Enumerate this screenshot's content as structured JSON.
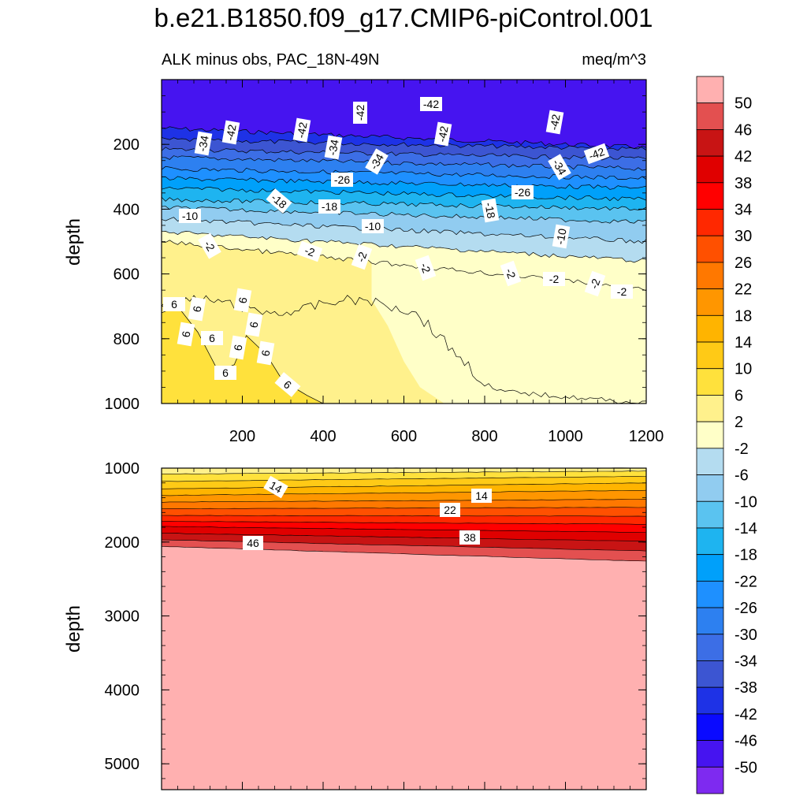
{
  "title": "b.e21.B1850.f09_g17.CMIP6-piControl.001",
  "chart_data": {
    "type": "heatmap",
    "subtitle_left": "ALK minus obs, PAC_18N-49N",
    "subtitle_right": "meq/m^3",
    "x_axis": {
      "range": [
        0,
        1200
      ],
      "ticks": [
        200,
        400,
        600,
        800,
        1000,
        1200
      ],
      "tick_labels": [
        "200",
        "400",
        "600",
        "800",
        "1000",
        "1200"
      ]
    },
    "upper_panel": {
      "ylabel": "depth",
      "ylim": [
        0,
        1000
      ],
      "ytick_labels": [
        "200",
        "400",
        "600",
        "800",
        "1000"
      ],
      "yticks": [
        200,
        400,
        600,
        800,
        1000
      ],
      "contour_labels": [
        "-42",
        "-42",
        "-42",
        "-42",
        "-42",
        "-42",
        "-42",
        "-34",
        "-34",
        "-34",
        "-34",
        "-34",
        "-26",
        "-26",
        "-18",
        "-18",
        "-18",
        "-10",
        "-10",
        "-10",
        "-2",
        "-2",
        "-2",
        "-2",
        "-2",
        "-2",
        "-2",
        "-2",
        "6",
        "6",
        "6",
        "6",
        "6",
        "6",
        "6",
        "6",
        "6",
        "6"
      ]
    },
    "lower_panel": {
      "ylabel": "depth",
      "ylim": [
        1000,
        5350
      ],
      "ytick_labels": [
        "1000",
        "2000",
        "3000",
        "4000",
        "5000"
      ],
      "yticks": [
        1000,
        2000,
        3000,
        4000,
        5000
      ],
      "contour_labels": [
        "14",
        "14",
        "22",
        "46",
        "38"
      ]
    },
    "colorbar": {
      "levels": [
        "50",
        "46",
        "42",
        "38",
        "34",
        "30",
        "26",
        "22",
        "18",
        "14",
        "10",
        "6",
        "2",
        "-2",
        "-6",
        "-10",
        "-14",
        "-18",
        "-22",
        "-26",
        "-30",
        "-34",
        "-38",
        "-42",
        "-46",
        "-50"
      ],
      "colors": [
        "#FFB0B0",
        "#E35050",
        "#C81414",
        "#E00000",
        "#FF0000",
        "#FF2800",
        "#FF5000",
        "#FF7800",
        "#FF9600",
        "#FFB400",
        "#FFCA16",
        "#FFE13C",
        "#FFF18C",
        "#FFFFC8",
        "#B4DCF0",
        "#91CCF0",
        "#5AC3F0",
        "#1EB4F0",
        "#00A0FA",
        "#1E90FF",
        "#2D80F0",
        "#3C6EE6",
        "#3C55D2",
        "#1E32E6",
        "#0A0AFF",
        "#4614F0",
        "#7E2AF0"
      ]
    },
    "upper_fields": {
      "depths": [
        0,
        200,
        300,
        400,
        450,
        560,
        1000
      ],
      "values_left": [
        -46,
        -40,
        -32,
        -24,
        -16,
        -2,
        6
      ],
      "values_right": [
        -48,
        -44,
        -36,
        -26,
        -14,
        -4,
        0
      ]
    },
    "lower_fields": {
      "depths": [
        1000,
        1300,
        1800,
        2050,
        5350
      ],
      "values": [
        2,
        14,
        38,
        48,
        52
      ]
    }
  }
}
